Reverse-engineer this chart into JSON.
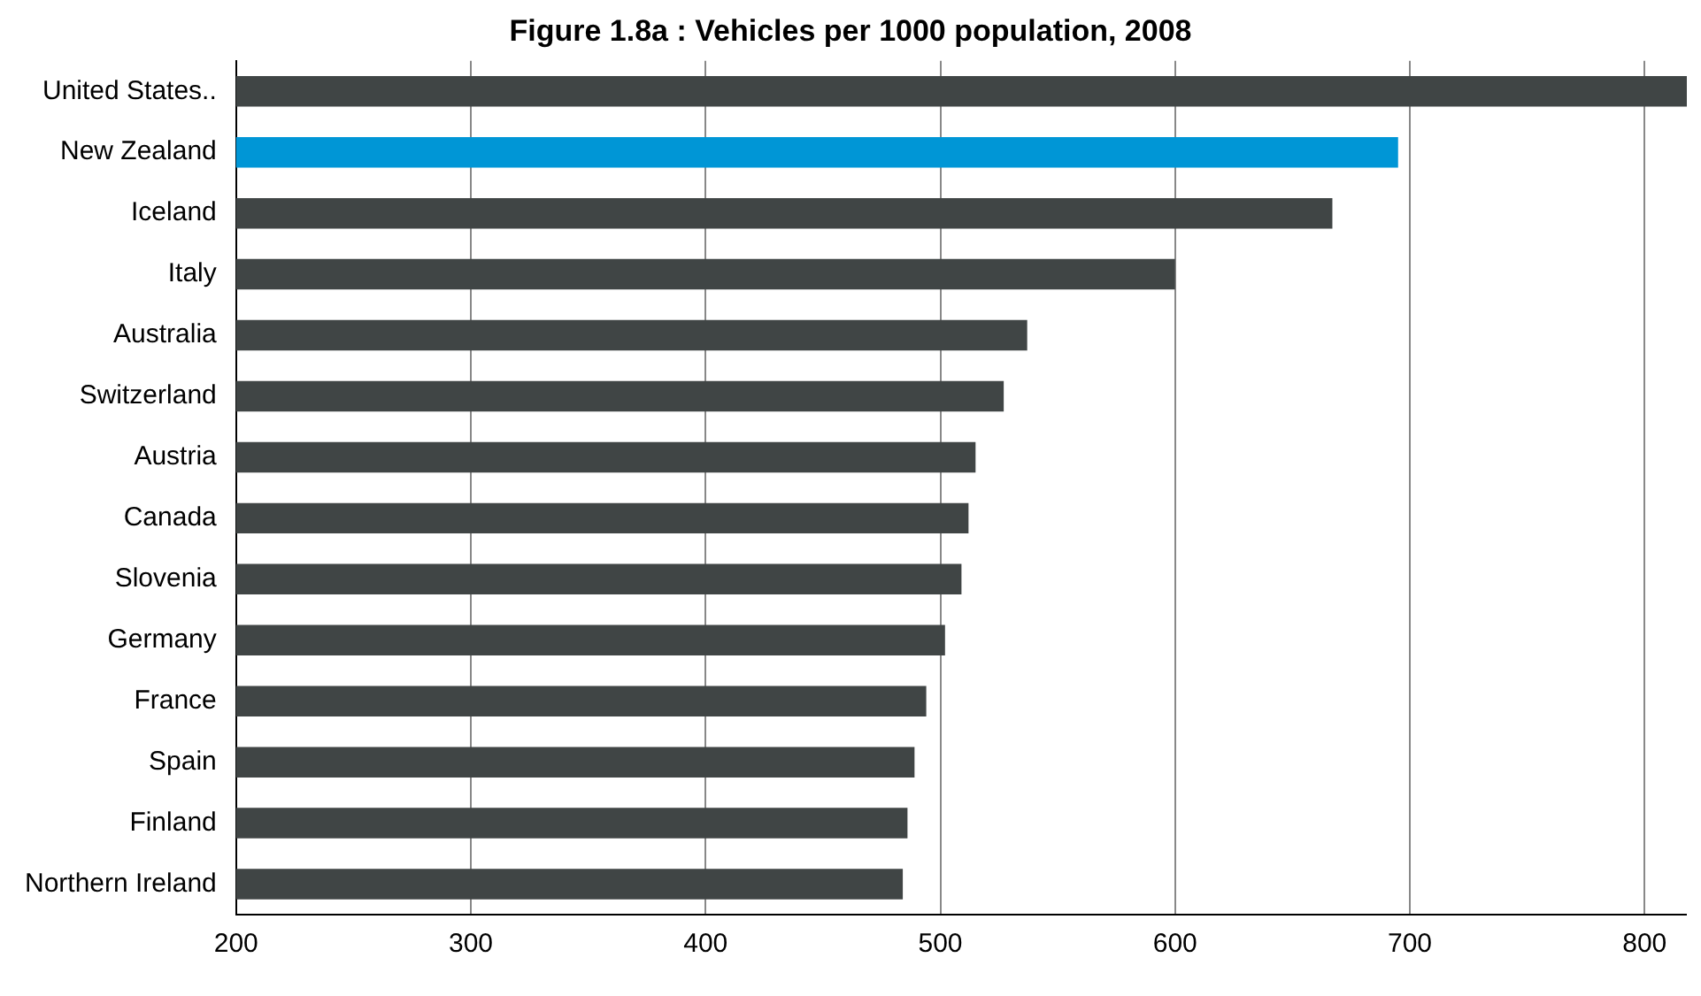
{
  "chart_data": {
    "type": "bar",
    "orientation": "horizontal",
    "title": "Figure 1.8a : Vehicles per 1000 population, 2008",
    "categories": [
      "United States..",
      "New Zealand",
      "Iceland",
      "Italy",
      "Australia",
      "Switzerland",
      "Austria",
      "Canada",
      "Slovenia",
      "Germany",
      "France",
      "Spain",
      "Finland",
      "Northern Ireland"
    ],
    "values": [
      818,
      695,
      667,
      600,
      537,
      527,
      515,
      512,
      509,
      502,
      494,
      489,
      486,
      484
    ],
    "colors": [
      "#404545",
      "#0096d6",
      "#404545",
      "#404545",
      "#404545",
      "#404545",
      "#404545",
      "#404545",
      "#404545",
      "#404545",
      "#404545",
      "#404545",
      "#404545",
      "#404545"
    ],
    "xlim": [
      200,
      818
    ],
    "xticks": [
      200,
      300,
      400,
      500,
      600,
      700,
      800
    ],
    "grid": "x",
    "legend": false
  }
}
